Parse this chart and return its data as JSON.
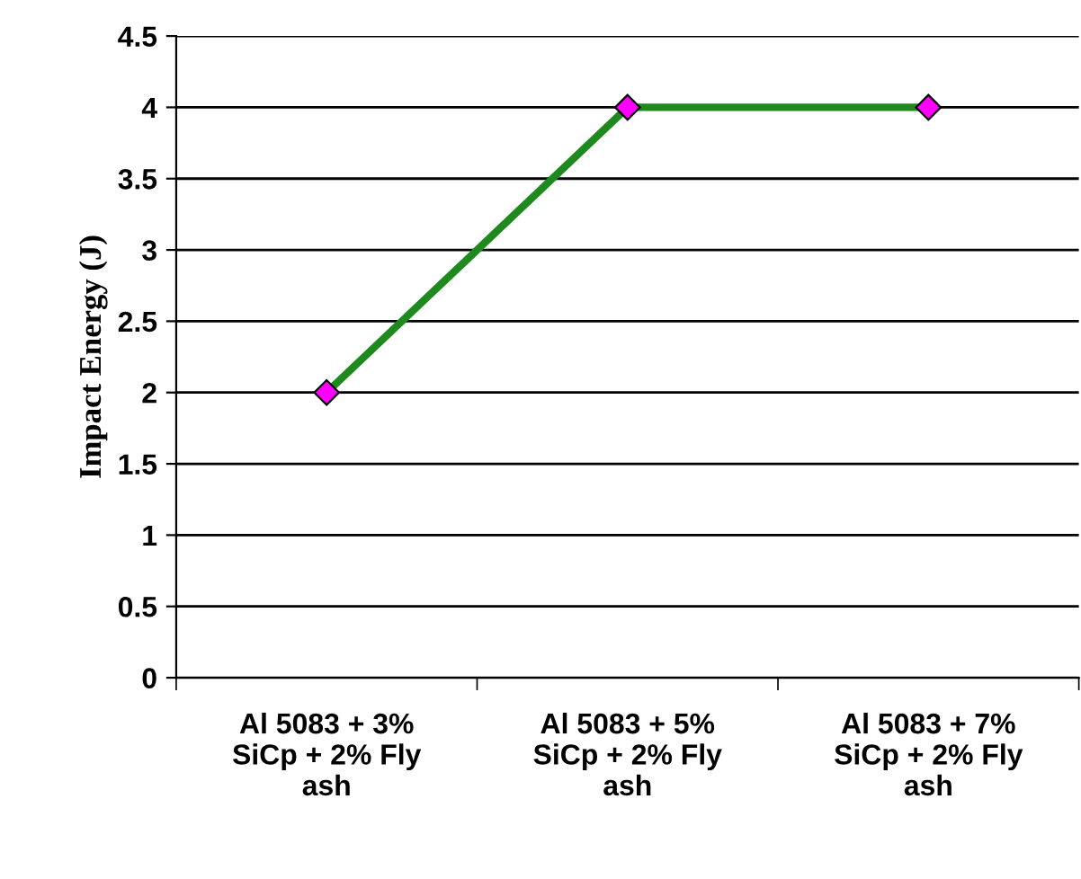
{
  "chart_data": {
    "type": "line",
    "ylabel": "Impact Energy (J)",
    "categories": [
      "Al 5083 + 3%\nSiCp + 2% Fly\nash",
      "Al 5083 + 5%\nSiCp + 2% Fly\nash",
      "Al 5083 + 7%\nSiCp + 2% Fly\nash"
    ],
    "series": [
      {
        "color": "#1e8a1e",
        "values": [
          2,
          4,
          4
        ]
      }
    ],
    "marker": "diamond",
    "line_style": "solid",
    "ylim": [
      0,
      4.5
    ],
    "yticks": [
      0,
      0.5,
      1,
      1.5,
      2,
      2.5,
      3,
      3.5,
      4,
      4.5
    ],
    "grid": "y"
  }
}
